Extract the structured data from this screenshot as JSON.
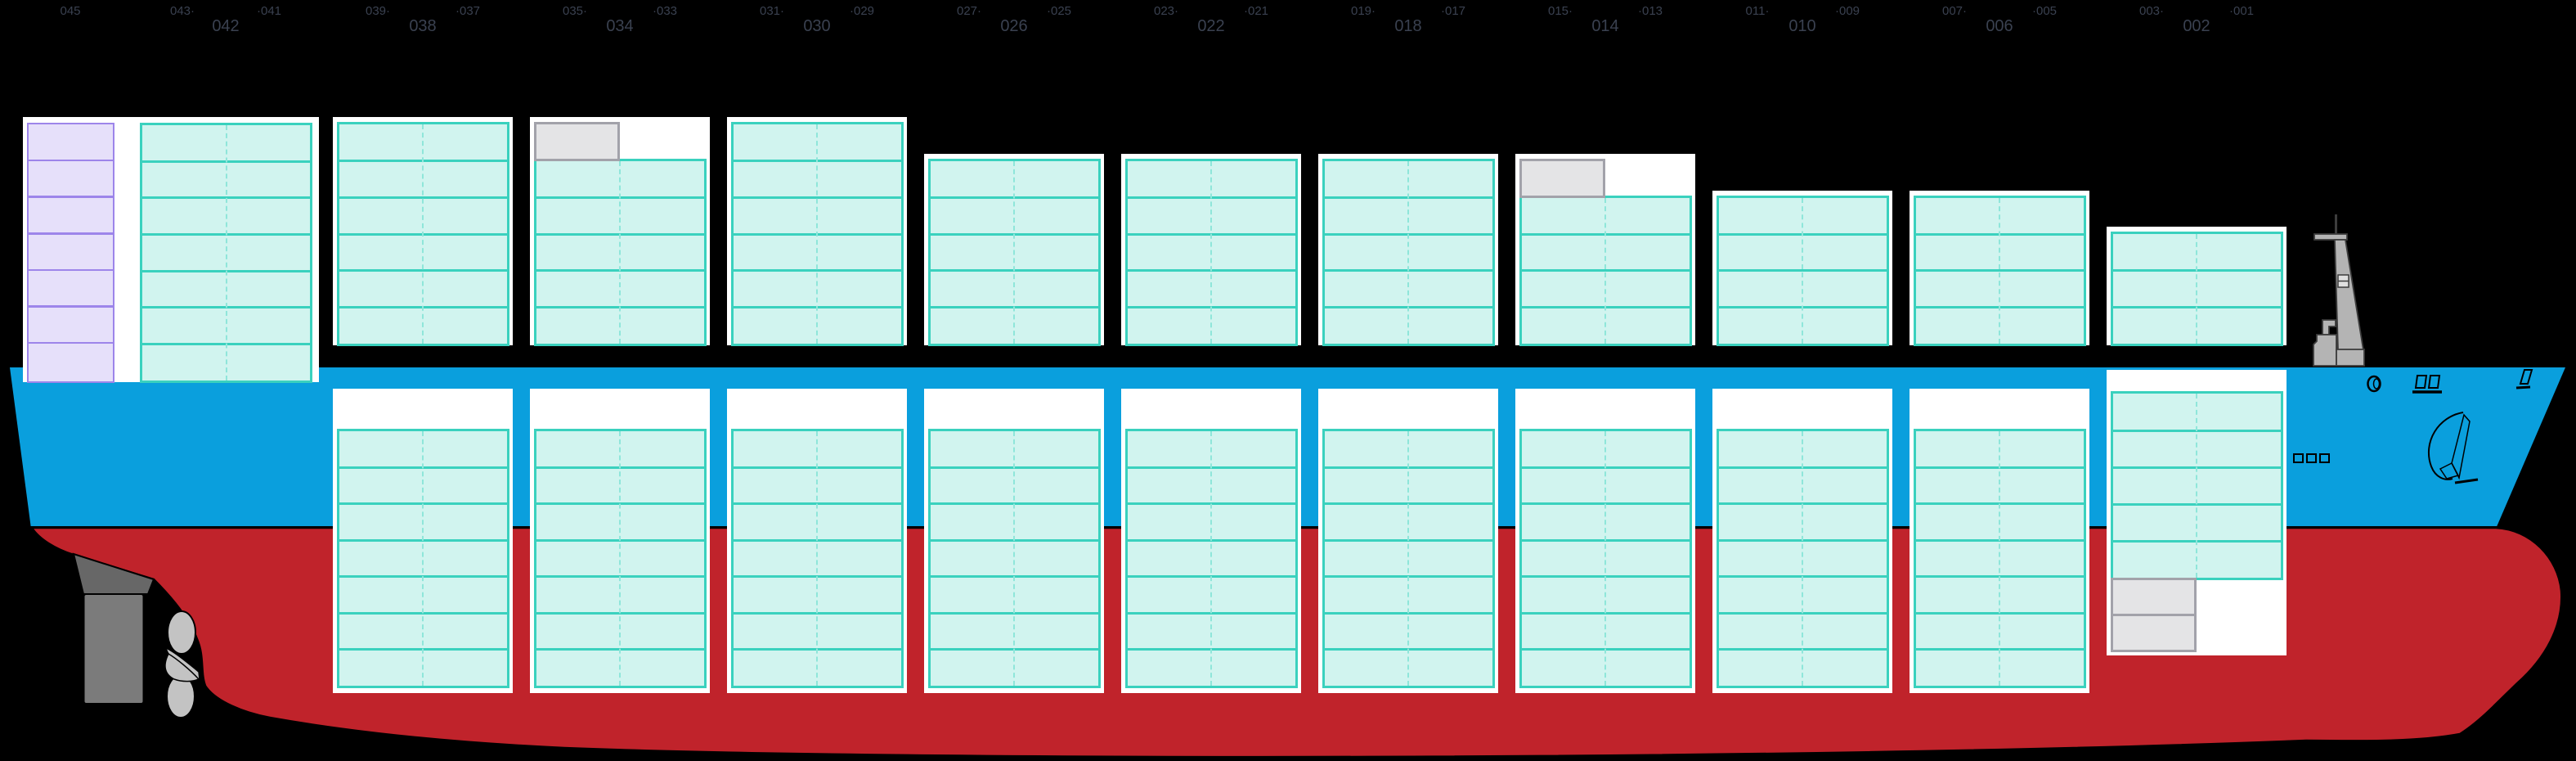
{
  "colors": {
    "background": "#000000",
    "hull_blue": "#0a9fdd",
    "hull_red": "#c0232b",
    "panel_white": "#ffffff",
    "teal_border": "#3ad1be",
    "teal_fill": "#d1f4ef",
    "teal_dash": "#8fe6da",
    "purple_border": "#9d85ea",
    "purple_fill": "#e6e0fa",
    "gray_fill": "#e4e4e6",
    "gray_border": "#a2a2aa",
    "label": "#3a4150",
    "mast_gray": "#b4b4b4",
    "mast_outline": "#3d3d3d",
    "rudder_upper": "#676767",
    "rudder_lower": "#7b7b7b",
    "propeller": "#c3c3c3"
  },
  "bays": [
    {
      "id": "042",
      "type": "stern",
      "odd_labels": [
        "045",
        "043·",
        "·041"
      ],
      "even_label": "042",
      "purple_tiers": 7,
      "above_tiers": 7
    },
    {
      "id": "038",
      "odd_labels": [
        "039·",
        "·037"
      ],
      "even_label": "038",
      "above_tiers": 6,
      "above_gray_top": false,
      "hold_tiers": 7
    },
    {
      "id": "034",
      "odd_labels": [
        "035·",
        "·033"
      ],
      "even_label": "034",
      "above_tiers": 6,
      "above_gray_top": true,
      "hold_tiers": 7
    },
    {
      "id": "030",
      "odd_labels": [
        "031·",
        "·029"
      ],
      "even_label": "030",
      "above_tiers": 6,
      "above_gray_top": false,
      "hold_tiers": 7
    },
    {
      "id": "026",
      "odd_labels": [
        "027·",
        "·025"
      ],
      "even_label": "026",
      "above_tiers": 5,
      "above_gray_top": false,
      "hold_tiers": 7
    },
    {
      "id": "022",
      "odd_labels": [
        "023·",
        "·021"
      ],
      "even_label": "022",
      "above_tiers": 5,
      "above_gray_top": false,
      "hold_tiers": 7
    },
    {
      "id": "018",
      "odd_labels": [
        "019·",
        "·017"
      ],
      "even_label": "018",
      "above_tiers": 5,
      "above_gray_top": false,
      "hold_tiers": 7
    },
    {
      "id": "014",
      "odd_labels": [
        "015·",
        "·013"
      ],
      "even_label": "014",
      "above_tiers": 5,
      "above_gray_top": true,
      "hold_tiers": 7
    },
    {
      "id": "010",
      "odd_labels": [
        "011·",
        "·009"
      ],
      "even_label": "010",
      "above_tiers": 4,
      "above_gray_top": false,
      "hold_tiers": 7
    },
    {
      "id": "006",
      "odd_labels": [
        "007·",
        "·005"
      ],
      "even_label": "006",
      "above_tiers": 4,
      "above_gray_top": false,
      "hold_tiers": 7
    },
    {
      "id": "002",
      "odd_labels": [
        "003·",
        "·001"
      ],
      "even_label": "002",
      "above_tiers": 3,
      "above_gray_top": false,
      "hold_tiers": 5,
      "hold_gray_tiers": 2,
      "hold_raised": true
    }
  ]
}
